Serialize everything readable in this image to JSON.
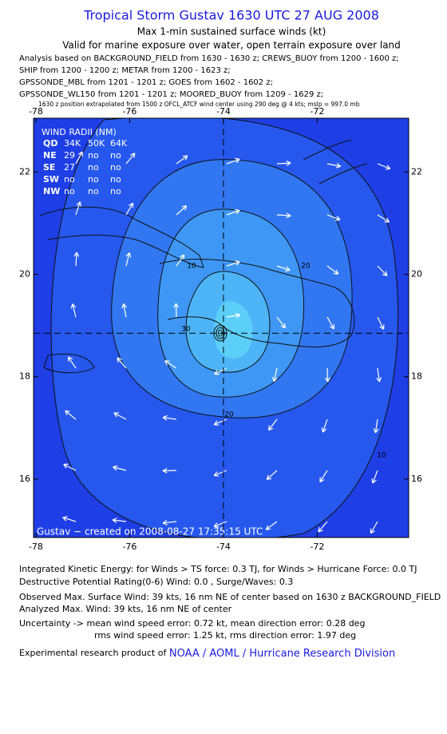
{
  "header": {
    "title": "Tropical Storm Gustav 1630 UTC 27 AUG 2008",
    "subtitle": "Max 1-min sustained surface winds (kt)",
    "validity": "Valid for marine exposure over water, open terrain exposure over land",
    "sources": [
      "Analysis based on  BACKGROUND_FIELD from 1630 - 1630 z;  CREWS_BUOY from 1200 - 1600 z;",
      "SHIP from 1200 - 1200 z;  METAR from 1200 - 1623 z;",
      "GPSSONDE_MBL from 1201 - 1201 z;  GOES from 1602 - 1602 z;",
      "GPSSONDE_WL150 from 1201 - 1201 z;  MOORED_BUOY from 1209 - 1629 z;"
    ],
    "note": "1630 z position extrapolated from 1500 z OFCL_ATCF wind center using 290 deg @ 4 kts; mslp = 997.0 mb"
  },
  "map": {
    "xlim": [
      -78.05,
      -70.05
    ],
    "ylim": [
      14.86,
      23.05
    ],
    "xticks": [
      -78,
      -76,
      -74,
      -72
    ],
    "yticks": [
      22,
      20,
      18,
      16
    ],
    "center": [
      -74,
      18.85
    ],
    "wind_radii": {
      "title": "WIND RADII (NM)",
      "rows": [
        [
          "QD",
          "34K",
          "50K",
          "64K"
        ],
        [
          "NE",
          29,
          "no",
          "no"
        ],
        [
          "SE",
          27,
          "no",
          "no"
        ],
        [
          "SW",
          "no",
          "no",
          "no"
        ],
        [
          "NW",
          "no",
          "no",
          "no"
        ]
      ]
    },
    "contour_labels": [
      10,
      20,
      20,
      30,
      10
    ],
    "credit": "Gustav − created on 2008-08-27 17:35:15 UTC"
  },
  "footer": {
    "lines": [
      "Integrated Kinetic Energy:  for Winds > TS force: 0.3 TJ,  for Winds > Hurricane Force: 0.0 TJ",
      "Destructive Potential Rating(0-6)   Wind: 0.0 , Surge/Waves: 0.3",
      "Observed Max. Surface Wind: 39 kts, 16 nm NE of center based on 1630 z BACKGROUND_FIELD",
      "Analyzed Max. Wind: 39 kts, 16 nm NE of center",
      "Uncertainty -> mean wind speed error: 0.72 kt,   mean direction error: 0.28 deg",
      "rms wind speed error: 1.25 kt,   rms direction error: 1.97 deg"
    ],
    "product": "Experimental research product of",
    "link": "NOAA / AOML / Hurricane Research Division"
  }
}
